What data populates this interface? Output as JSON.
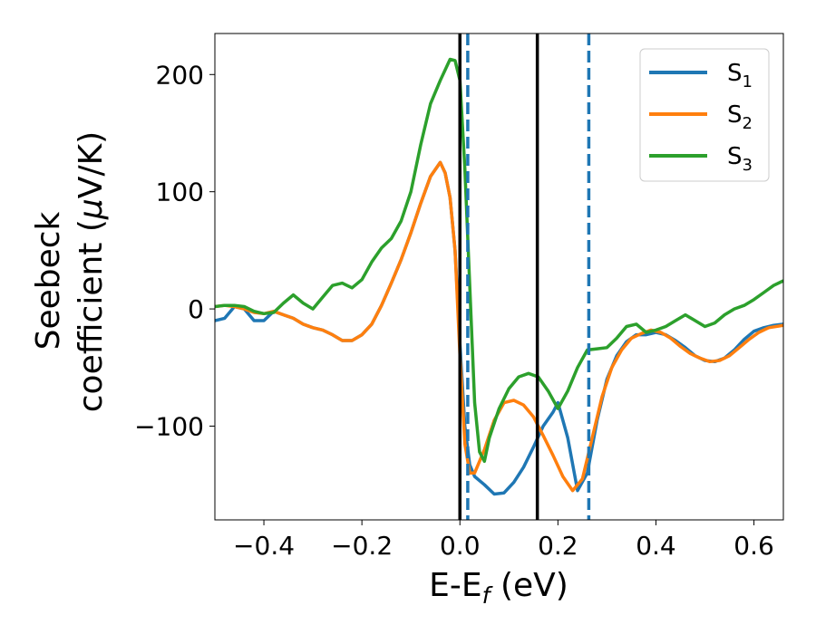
{
  "chart_data": {
    "type": "line",
    "xlabel": "E-E",
    "xlabel_sub": "f",
    "xlabel_unit": " (eV)",
    "ylabel_line1": "Seebeck",
    "ylabel_line2": "coefficient  (",
    "ylabel_mu": "μ",
    "ylabel_unit": "V/K)",
    "xlim": [
      -0.5,
      0.66
    ],
    "ylim": [
      -180,
      235
    ],
    "xticks": [
      -0.4,
      -0.2,
      0.0,
      0.2,
      0.4,
      0.6
    ],
    "xtick_labels": [
      "−0.4",
      "−0.2",
      "0.0",
      "0.2",
      "0.4",
      "0.6"
    ],
    "yticks": [
      -100,
      0,
      100,
      200
    ],
    "ytick_labels": [
      "−100",
      "0",
      "100",
      "200"
    ],
    "grid": false,
    "legend_position": "top-right",
    "vlines_solid": [
      0.0,
      0.158
    ],
    "vlines_dashed": [
      0.016,
      0.263
    ],
    "series": [
      {
        "name": "S",
        "sub": "1",
        "color": "#1f77b4",
        "points": [
          [
            -0.5,
            -10
          ],
          [
            -0.48,
            -8
          ],
          [
            -0.46,
            2
          ],
          [
            -0.44,
            0
          ],
          [
            -0.42,
            -10
          ],
          [
            -0.4,
            -10
          ],
          [
            -0.38,
            -2
          ],
          [
            -0.36,
            -5
          ],
          [
            -0.34,
            -8
          ],
          [
            -0.32,
            -13
          ],
          [
            -0.3,
            -16
          ],
          [
            -0.28,
            -18
          ],
          [
            -0.26,
            -22
          ],
          [
            -0.24,
            -27
          ],
          [
            -0.22,
            -27
          ],
          [
            -0.2,
            -22
          ],
          [
            -0.18,
            -13
          ],
          [
            -0.16,
            3
          ],
          [
            -0.14,
            22
          ],
          [
            -0.12,
            42
          ],
          [
            -0.1,
            65
          ],
          [
            -0.08,
            90
          ],
          [
            -0.06,
            113
          ],
          [
            -0.04,
            125
          ],
          [
            -0.03,
            116
          ],
          [
            -0.02,
            95
          ],
          [
            -0.01,
            50
          ],
          [
            0.0,
            -30
          ],
          [
            0.01,
            -100
          ],
          [
            0.02,
            -133
          ],
          [
            0.03,
            -143
          ],
          [
            0.05,
            -150
          ],
          [
            0.07,
            -158
          ],
          [
            0.09,
            -157
          ],
          [
            0.11,
            -148
          ],
          [
            0.13,
            -135
          ],
          [
            0.15,
            -118
          ],
          [
            0.17,
            -100
          ],
          [
            0.19,
            -88
          ],
          [
            0.2,
            -80
          ],
          [
            0.22,
            -110
          ],
          [
            0.24,
            -155
          ],
          [
            0.26,
            -140
          ],
          [
            0.28,
            -95
          ],
          [
            0.3,
            -60
          ],
          [
            0.32,
            -40
          ],
          [
            0.34,
            -28
          ],
          [
            0.36,
            -22
          ],
          [
            0.38,
            -22
          ],
          [
            0.4,
            -20
          ],
          [
            0.42,
            -22
          ],
          [
            0.44,
            -27
          ],
          [
            0.46,
            -33
          ],
          [
            0.48,
            -40
          ],
          [
            0.5,
            -44
          ],
          [
            0.52,
            -45
          ],
          [
            0.54,
            -42
          ],
          [
            0.56,
            -35
          ],
          [
            0.58,
            -26
          ],
          [
            0.6,
            -19
          ],
          [
            0.62,
            -16
          ],
          [
            0.64,
            -14
          ],
          [
            0.66,
            -13
          ]
        ]
      },
      {
        "name": "S",
        "sub": "2",
        "color": "#ff7f0e",
        "points": [
          [
            -0.5,
            2
          ],
          [
            -0.48,
            3
          ],
          [
            -0.46,
            2
          ],
          [
            -0.44,
            0
          ],
          [
            -0.42,
            -3
          ],
          [
            -0.4,
            -4
          ],
          [
            -0.38,
            -2
          ],
          [
            -0.36,
            -5
          ],
          [
            -0.34,
            -8
          ],
          [
            -0.32,
            -13
          ],
          [
            -0.3,
            -16
          ],
          [
            -0.28,
            -18
          ],
          [
            -0.26,
            -22
          ],
          [
            -0.24,
            -27
          ],
          [
            -0.22,
            -27
          ],
          [
            -0.2,
            -22
          ],
          [
            -0.18,
            -13
          ],
          [
            -0.16,
            3
          ],
          [
            -0.14,
            22
          ],
          [
            -0.12,
            42
          ],
          [
            -0.1,
            65
          ],
          [
            -0.08,
            90
          ],
          [
            -0.06,
            113
          ],
          [
            -0.04,
            125
          ],
          [
            -0.03,
            116
          ],
          [
            -0.02,
            95
          ],
          [
            -0.01,
            50
          ],
          [
            0.0,
            -40
          ],
          [
            0.01,
            -115
          ],
          [
            0.02,
            -140
          ],
          [
            0.03,
            -140
          ],
          [
            0.04,
            -130
          ],
          [
            0.05,
            -120
          ],
          [
            0.07,
            -95
          ],
          [
            0.09,
            -80
          ],
          [
            0.11,
            -78
          ],
          [
            0.13,
            -82
          ],
          [
            0.15,
            -92
          ],
          [
            0.17,
            -108
          ],
          [
            0.19,
            -125
          ],
          [
            0.21,
            -143
          ],
          [
            0.23,
            -155
          ],
          [
            0.25,
            -145
          ],
          [
            0.27,
            -110
          ],
          [
            0.29,
            -75
          ],
          [
            0.31,
            -50
          ],
          [
            0.33,
            -35
          ],
          [
            0.35,
            -25
          ],
          [
            0.37,
            -21
          ],
          [
            0.39,
            -18
          ],
          [
            0.41,
            -20
          ],
          [
            0.43,
            -25
          ],
          [
            0.45,
            -32
          ],
          [
            0.47,
            -38
          ],
          [
            0.49,
            -42
          ],
          [
            0.51,
            -45
          ],
          [
            0.53,
            -44
          ],
          [
            0.55,
            -40
          ],
          [
            0.57,
            -33
          ],
          [
            0.59,
            -26
          ],
          [
            0.61,
            -20
          ],
          [
            0.63,
            -16
          ],
          [
            0.66,
            -14
          ]
        ]
      },
      {
        "name": "S",
        "sub": "3",
        "color": "#2ca02c",
        "points": [
          [
            -0.5,
            2
          ],
          [
            -0.48,
            3
          ],
          [
            -0.46,
            3
          ],
          [
            -0.44,
            2
          ],
          [
            -0.42,
            -2
          ],
          [
            -0.4,
            -4
          ],
          [
            -0.38,
            -3
          ],
          [
            -0.36,
            5
          ],
          [
            -0.34,
            12
          ],
          [
            -0.32,
            5
          ],
          [
            -0.3,
            0
          ],
          [
            -0.28,
            10
          ],
          [
            -0.26,
            20
          ],
          [
            -0.24,
            22
          ],
          [
            -0.22,
            18
          ],
          [
            -0.2,
            25
          ],
          [
            -0.18,
            40
          ],
          [
            -0.16,
            52
          ],
          [
            -0.14,
            60
          ],
          [
            -0.12,
            75
          ],
          [
            -0.1,
            100
          ],
          [
            -0.08,
            140
          ],
          [
            -0.06,
            175
          ],
          [
            -0.04,
            195
          ],
          [
            -0.02,
            213
          ],
          [
            -0.01,
            212
          ],
          [
            0.0,
            195
          ],
          [
            0.01,
            120
          ],
          [
            0.02,
            20
          ],
          [
            0.03,
            -80
          ],
          [
            0.04,
            -122
          ],
          [
            0.05,
            -130
          ],
          [
            0.06,
            -110
          ],
          [
            0.08,
            -85
          ],
          [
            0.1,
            -68
          ],
          [
            0.12,
            -58
          ],
          [
            0.14,
            -55
          ],
          [
            0.16,
            -58
          ],
          [
            0.18,
            -70
          ],
          [
            0.2,
            -85
          ],
          [
            0.22,
            -70
          ],
          [
            0.24,
            -50
          ],
          [
            0.26,
            -35
          ],
          [
            0.28,
            -34
          ],
          [
            0.3,
            -33
          ],
          [
            0.32,
            -25
          ],
          [
            0.34,
            -15
          ],
          [
            0.36,
            -13
          ],
          [
            0.38,
            -20
          ],
          [
            0.4,
            -18
          ],
          [
            0.42,
            -15
          ],
          [
            0.44,
            -10
          ],
          [
            0.46,
            -5
          ],
          [
            0.48,
            -10
          ],
          [
            0.5,
            -15
          ],
          [
            0.52,
            -12
          ],
          [
            0.54,
            -5
          ],
          [
            0.56,
            0
          ],
          [
            0.58,
            3
          ],
          [
            0.6,
            8
          ],
          [
            0.62,
            14
          ],
          [
            0.64,
            20
          ],
          [
            0.66,
            24
          ]
        ]
      }
    ]
  }
}
